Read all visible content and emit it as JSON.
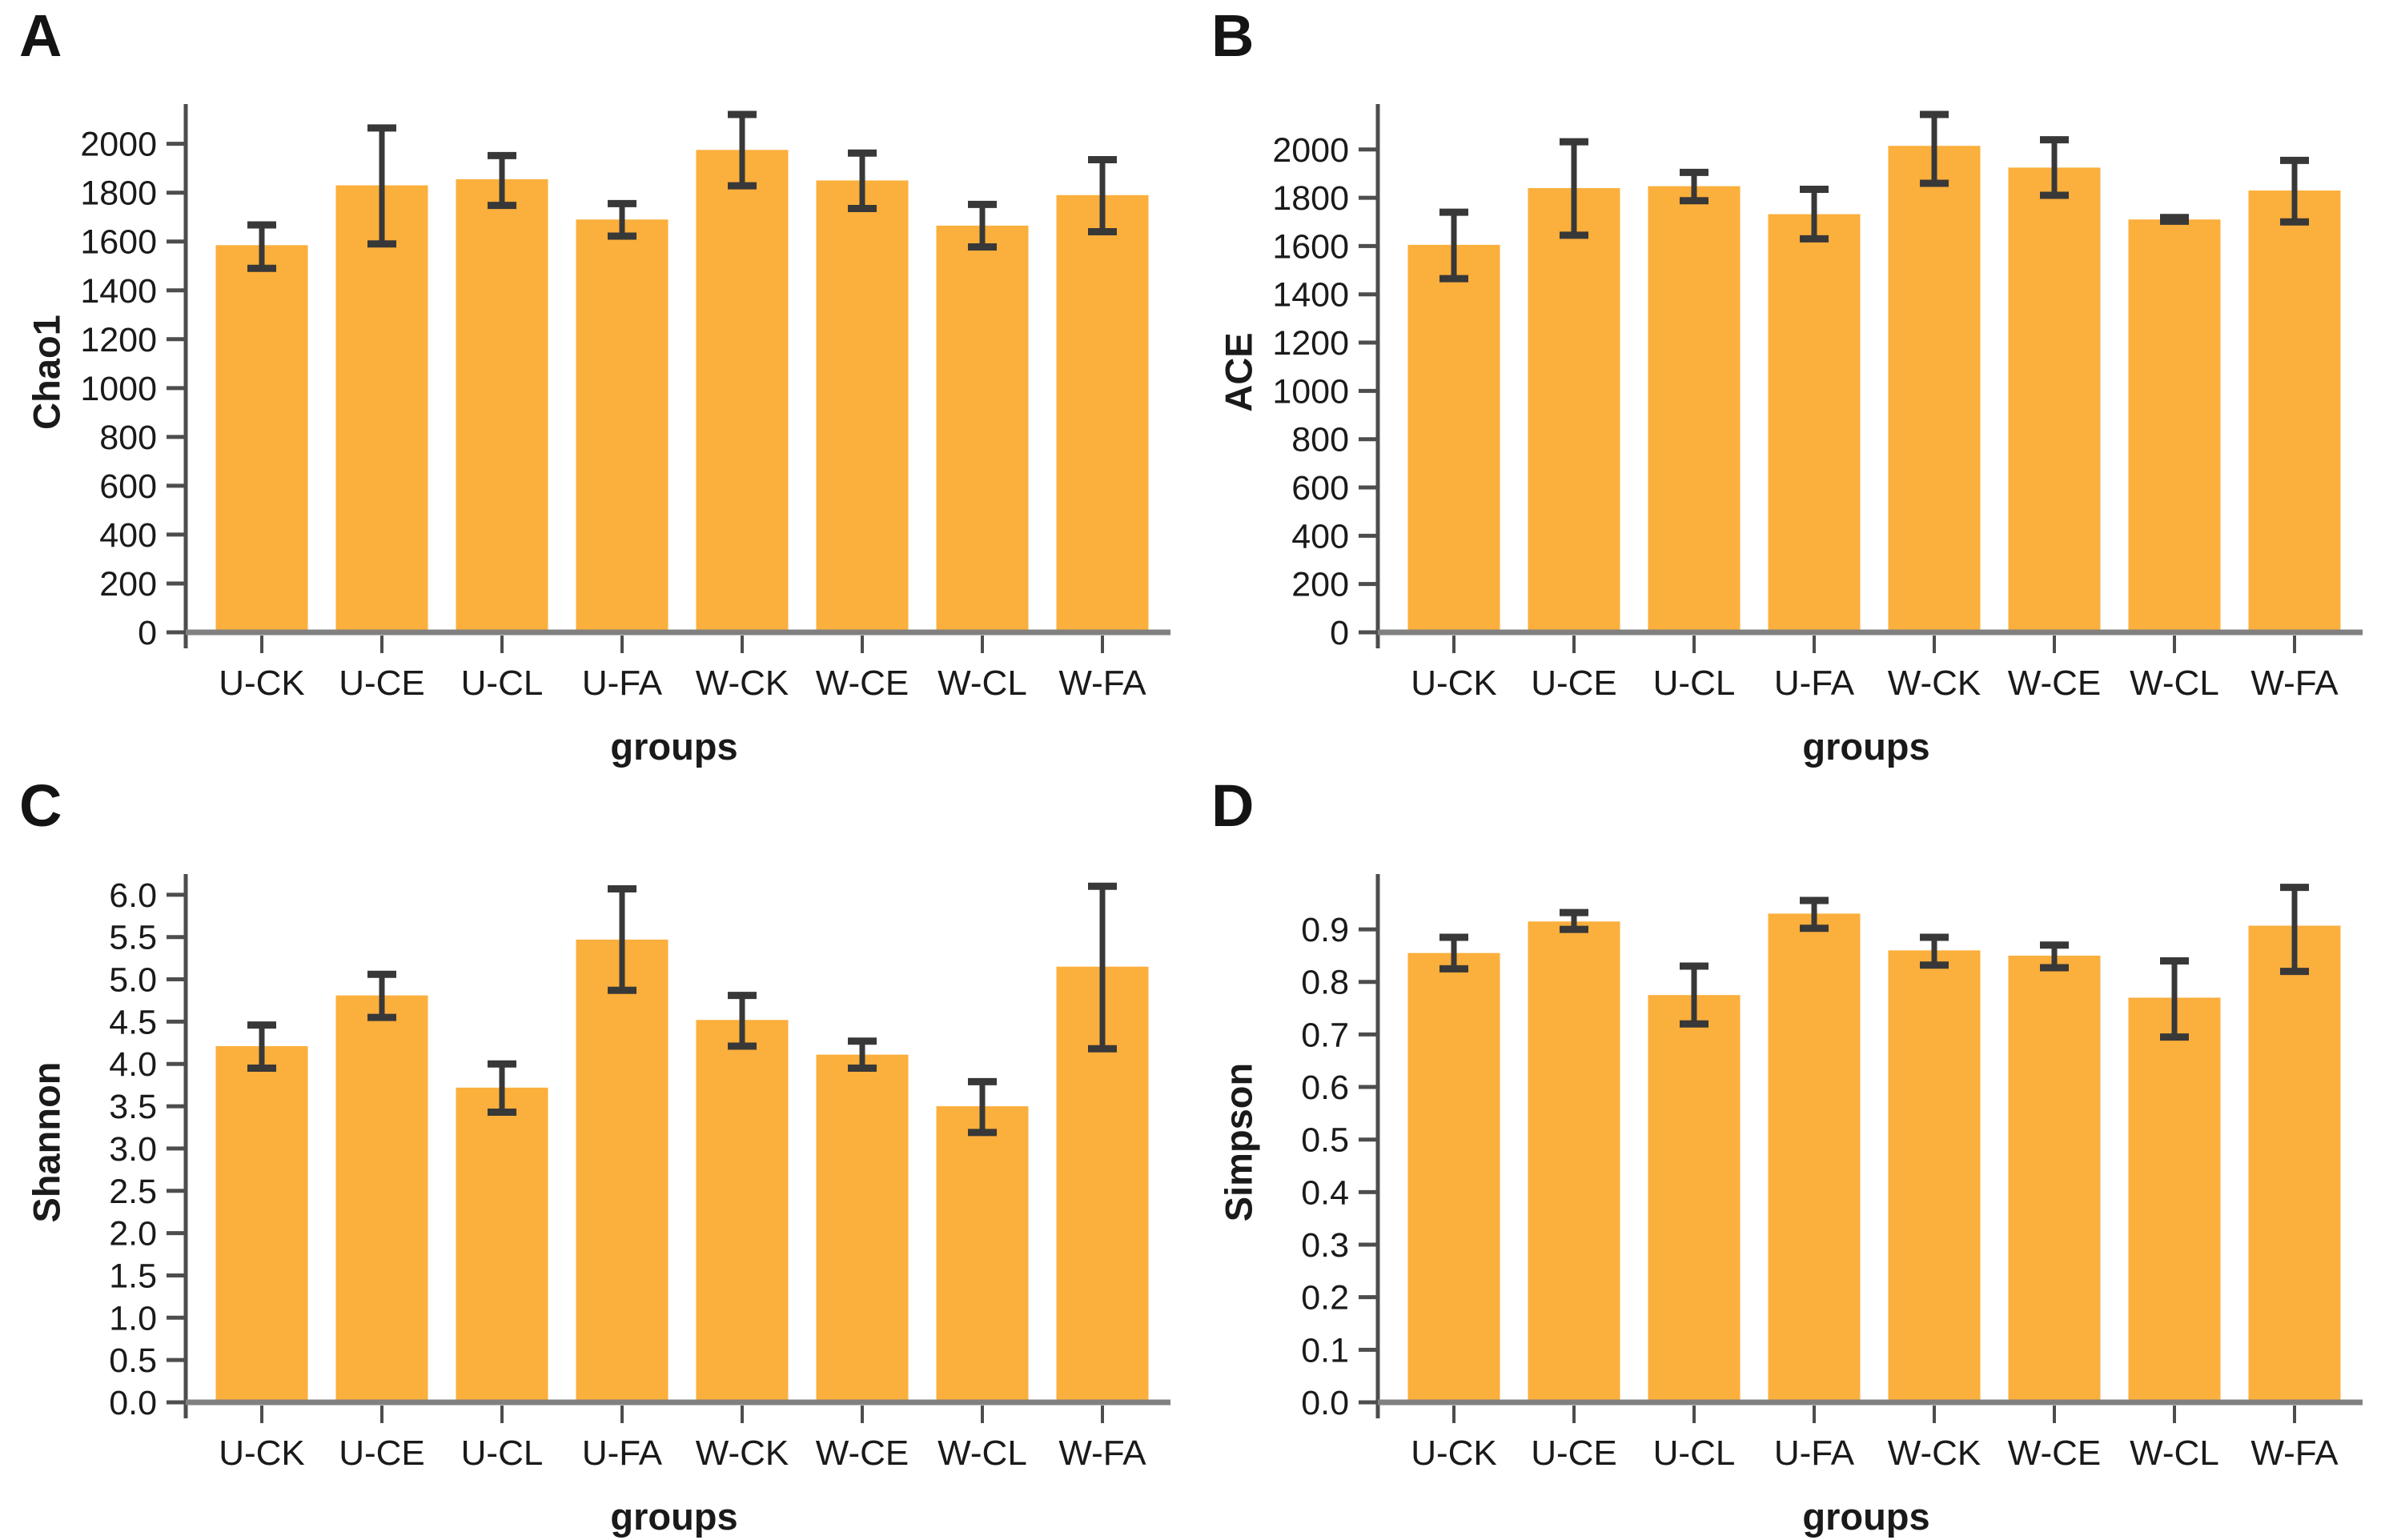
{
  "figure": {
    "xlabel": "groups",
    "bar_color": "#FBAF3C",
    "error_color": "#383838",
    "axis_color": "#4d4d4d",
    "baseline_color": "#808080",
    "text_color": "#1a1a1a",
    "background": "#ffffff",
    "categories": [
      "U-CK",
      "U-CE",
      "U-CL",
      "U-FA",
      "W-CK",
      "W-CE",
      "W-CL",
      "W-FA"
    ]
  },
  "chart_data": [
    {
      "panel": "A",
      "type": "bar",
      "ylabel": "Chao1",
      "xlabel": "groups",
      "categories": [
        "U-CK",
        "U-CE",
        "U-CL",
        "U-FA",
        "W-CK",
        "W-CE",
        "W-CL",
        "W-FA"
      ],
      "values": [
        1585,
        1830,
        1855,
        1690,
        1975,
        1850,
        1665,
        1790
      ],
      "error_low": [
        1490,
        1590,
        1748,
        1622,
        1828,
        1735,
        1578,
        1640
      ],
      "error_high": [
        1668,
        2065,
        1952,
        1755,
        2120,
        1962,
        1752,
        1935
      ],
      "yticks": [
        0,
        200,
        400,
        600,
        800,
        1000,
        1200,
        1400,
        1600,
        1800,
        2000
      ],
      "ylim": [
        0,
        2130
      ],
      "tick_decimals": 0,
      "grid": false,
      "legend": "none"
    },
    {
      "panel": "B",
      "type": "bar",
      "ylabel": "ACE",
      "xlabel": "groups",
      "categories": [
        "U-CK",
        "U-CE",
        "U-CL",
        "U-FA",
        "W-CK",
        "W-CE",
        "W-CL",
        "W-FA"
      ],
      "values": [
        1605,
        1840,
        1848,
        1732,
        2015,
        1925,
        1710,
        1830
      ],
      "error_low": [
        1465,
        1645,
        1788,
        1630,
        1860,
        1810,
        1703,
        1700
      ],
      "error_high": [
        1740,
        2032,
        1905,
        1835,
        2145,
        2040,
        1718,
        1955
      ],
      "yticks": [
        0,
        200,
        400,
        600,
        800,
        1000,
        1200,
        1400,
        1600,
        1800,
        2000
      ],
      "ylim": [
        0,
        2155
      ],
      "tick_decimals": 0,
      "grid": false,
      "legend": "none"
    },
    {
      "panel": "C",
      "type": "bar",
      "ylabel": "Shannon",
      "xlabel": "groups",
      "categories": [
        "U-CK",
        "U-CE",
        "U-CL",
        "U-FA",
        "W-CK",
        "W-CE",
        "W-CL",
        "W-FA"
      ],
      "values": [
        4.21,
        4.81,
        3.72,
        5.47,
        4.52,
        4.11,
        3.5,
        5.15
      ],
      "error_low": [
        3.95,
        4.55,
        3.43,
        4.87,
        4.21,
        3.95,
        3.19,
        4.18
      ],
      "error_high": [
        4.46,
        5.06,
        4.0,
        6.07,
        4.81,
        4.27,
        3.79,
        6.1
      ],
      "yticks": [
        0.0,
        0.5,
        1.0,
        1.5,
        2.0,
        2.5,
        3.0,
        3.5,
        4.0,
        4.5,
        5.0,
        5.5,
        6.0
      ],
      "ylim": [
        0,
        6.15
      ],
      "tick_decimals": 1,
      "grid": false,
      "legend": "none"
    },
    {
      "panel": "D",
      "type": "bar",
      "ylabel": "Simpson",
      "xlabel": "groups",
      "categories": [
        "U-CK",
        "U-CE",
        "U-CL",
        "U-FA",
        "W-CK",
        "W-CE",
        "W-CL",
        "W-FA"
      ],
      "values": [
        0.855,
        0.915,
        0.775,
        0.93,
        0.86,
        0.85,
        0.77,
        0.907
      ],
      "error_low": [
        0.825,
        0.9,
        0.72,
        0.902,
        0.832,
        0.827,
        0.695,
        0.82
      ],
      "error_high": [
        0.885,
        0.932,
        0.83,
        0.955,
        0.885,
        0.87,
        0.84,
        0.98
      ],
      "yticks": [
        0.0,
        0.1,
        0.2,
        0.3,
        0.4,
        0.5,
        0.6,
        0.7,
        0.8,
        0.9
      ],
      "ylim": [
        0,
        0.99
      ],
      "tick_decimals": 1,
      "grid": false,
      "legend": "none"
    }
  ]
}
